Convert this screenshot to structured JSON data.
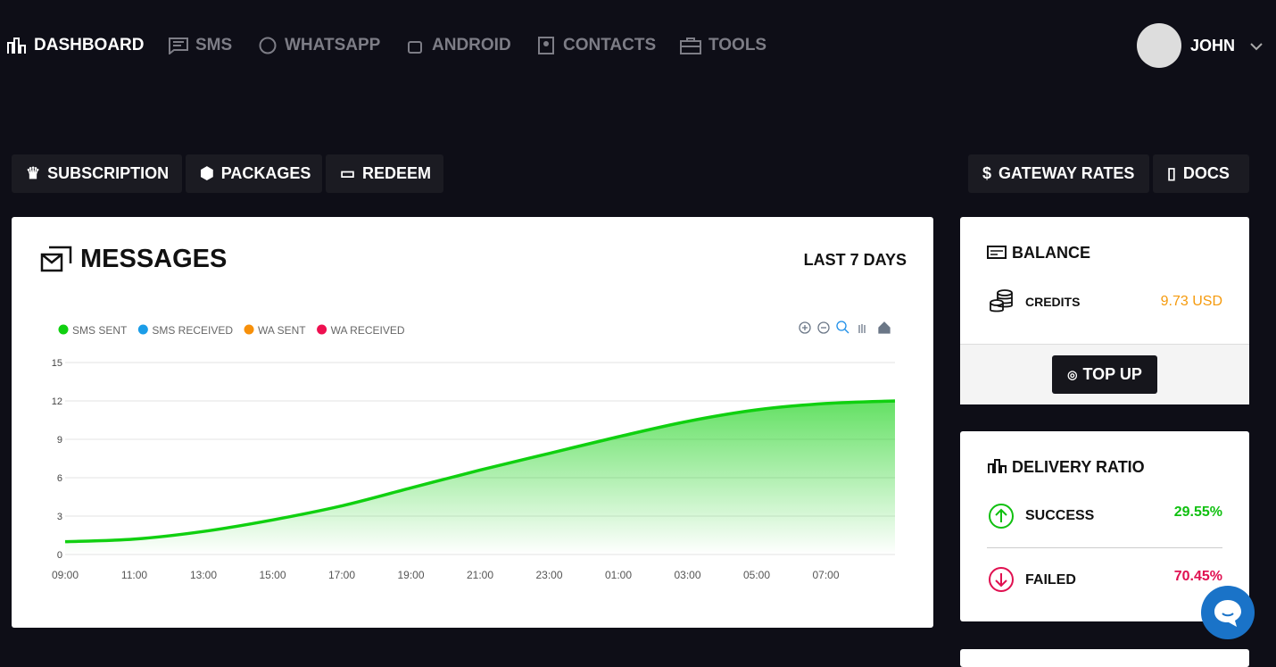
{
  "nav": {
    "items": [
      "DASHBOARD",
      "SMS",
      "WHATSAPP",
      "ANDROID",
      "CONTACTS",
      "TOOLS"
    ],
    "user": "JOHN"
  },
  "toolbar": {
    "left": [
      "SUBSCRIPTION",
      "PACKAGES",
      "REDEEM"
    ],
    "right": [
      "GATEWAY RATES",
      "DOCS"
    ]
  },
  "messages": {
    "title": "MESSAGES",
    "period": "LAST 7 DAYS",
    "chart": {
      "type": "line",
      "categories": [
        "09:00",
        "11:00",
        "13:00",
        "15:00",
        "17:00",
        "19:00",
        "21:00",
        "23:00",
        "01:00",
        "03:00",
        "05:00",
        "07:00",
        null
      ],
      "series": [
        {
          "name": "SMS SENT",
          "color": "#10d010",
          "values": [
            1,
            1.2,
            1.8,
            2.7,
            3.8,
            5.2,
            6.6,
            7.9,
            9.2,
            10.4,
            11.3,
            11.8,
            12
          ]
        },
        {
          "name": "SMS RECEIVED",
          "color": "#1b9de8"
        },
        {
          "name": "WA SENT",
          "color": "#f7900a"
        },
        {
          "name": "WA RECEIVED",
          "color": "#ee1050"
        }
      ],
      "ylim": [
        0,
        15
      ],
      "yticks": [
        0,
        3,
        6,
        9,
        12,
        15
      ],
      "grid": true
    }
  },
  "balance": {
    "title": "BALANCE",
    "credits_label": "CREDITS",
    "credits_value": "9.73 USD",
    "topup": "TOP UP"
  },
  "delivery": {
    "title": "DELIVERY RATIO",
    "success_label": "SUCCESS",
    "success_value": "29.55%",
    "failed_label": "FAILED",
    "failed_value": "70.45%"
  }
}
